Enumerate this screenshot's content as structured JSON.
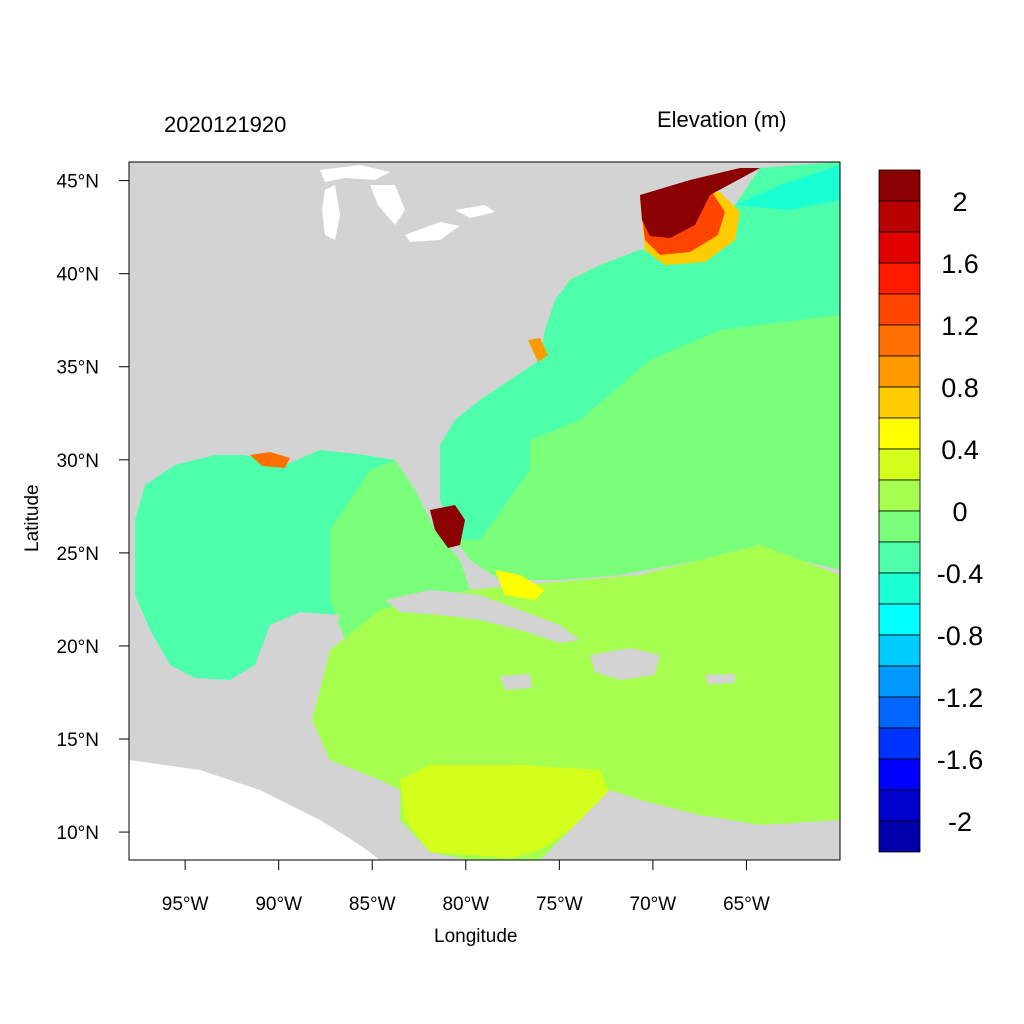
{
  "titles": {
    "left": "2020121920",
    "right": "Elevation (m)"
  },
  "axes": {
    "xlabel": "Longitude",
    "ylabel": "Latitude",
    "lon_range": [
      -98.0,
      -60.0
    ],
    "lat_range": [
      8.5,
      46.0
    ],
    "lon_ticks": [
      {
        "value": -95,
        "label": "95°W"
      },
      {
        "value": -90,
        "label": "90°W"
      },
      {
        "value": -85,
        "label": "85°W"
      },
      {
        "value": -80,
        "label": "80°W"
      },
      {
        "value": -75,
        "label": "75°W"
      },
      {
        "value": -70,
        "label": "70°W"
      },
      {
        "value": -65,
        "label": "65°W"
      }
    ],
    "lat_ticks": [
      {
        "value": 45,
        "label": "45°N"
      },
      {
        "value": 40,
        "label": "40°N"
      },
      {
        "value": 35,
        "label": "35°N"
      },
      {
        "value": 30,
        "label": "30°N"
      },
      {
        "value": 25,
        "label": "25°N"
      },
      {
        "value": 20,
        "label": "20°N"
      },
      {
        "value": 15,
        "label": "15°N"
      },
      {
        "value": 10,
        "label": "10°N"
      }
    ]
  },
  "colorbar": {
    "colors_top_to_bottom": [
      "#8b0000",
      "#b80000",
      "#e00000",
      "#ff1a00",
      "#ff4400",
      "#ff7000",
      "#ff9a00",
      "#ffcc00",
      "#ffff00",
      "#d4ff1a",
      "#a6ff4f",
      "#7aff7a",
      "#4dffaa",
      "#1affd4",
      "#00ffff",
      "#00ccff",
      "#0099ff",
      "#0066ff",
      "#0033ff",
      "#0000ff",
      "#0000cc",
      "#0000aa"
    ],
    "labels": [
      "2",
      "1.6",
      "1.2",
      "0.8",
      "0.4",
      "0",
      "-0.4",
      "-0.8",
      "-1.2",
      "-1.6",
      "-2"
    ]
  },
  "colors": {
    "land": "#d3d3d3",
    "water_white": "#ffffff",
    "gulf": "#4dffaa",
    "atlantic": "#7aff7a",
    "caribbean": "#a6ff4f",
    "southern_caribbean": "#d4ff1a",
    "gulf_of_maine": "#8b0000"
  }
}
